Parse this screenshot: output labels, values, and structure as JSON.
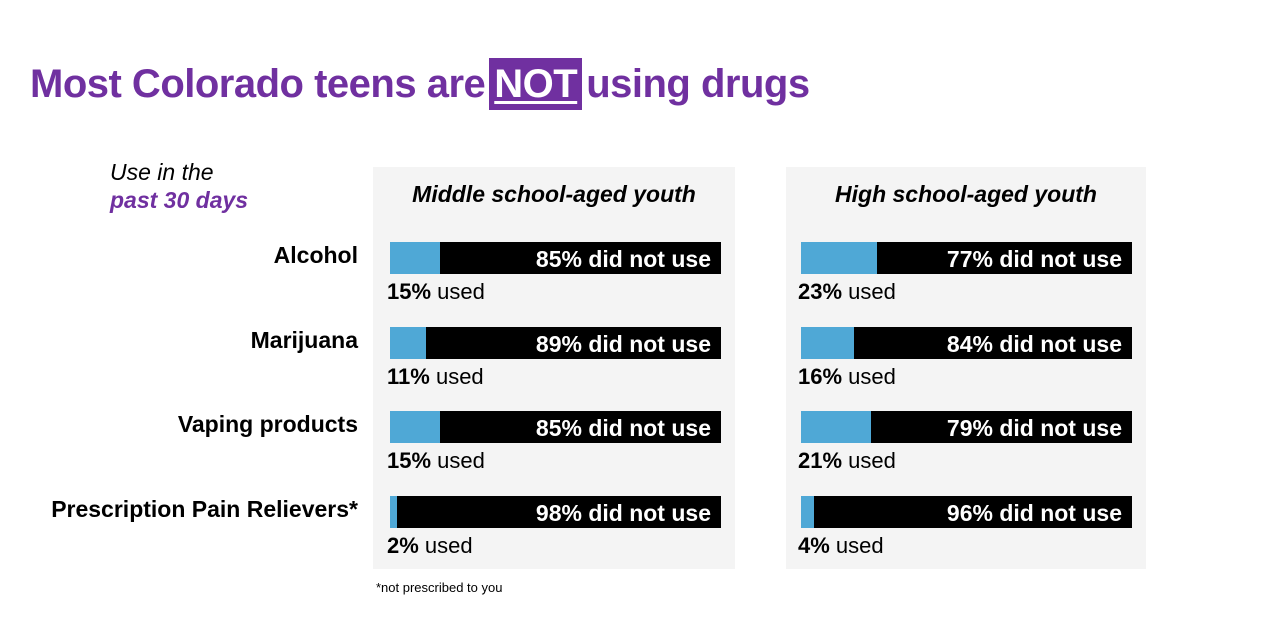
{
  "title": {
    "before": "Most Colorado teens are",
    "highlight": "NOT",
    "after": "using drugs"
  },
  "subhead": {
    "line1": "Use in the",
    "line2": "past 30 days"
  },
  "footnote": "*not prescribed to you",
  "colors": {
    "accent": "#7030a0",
    "used": "#4fa8d6",
    "not_used": "#000000",
    "panel_bg": "#f4f4f4"
  },
  "used_suffix": "used",
  "chart_data": {
    "type": "bar",
    "orientation": "horizontal-stacked",
    "categories": [
      "Alcohol",
      "Marijuana",
      "Vaping products",
      "Prescription Pain Relievers*"
    ],
    "groups": [
      {
        "name": "Middle school-aged youth",
        "used": [
          15,
          11,
          15,
          2
        ],
        "not_used": [
          85,
          89,
          85,
          98
        ],
        "used_labels": [
          "15%",
          "11%",
          "15%",
          "2%"
        ],
        "not_used_labels": [
          "85% did not use",
          "89% did not use",
          "85% did not use",
          "98% did not use"
        ]
      },
      {
        "name": "High school-aged youth",
        "used": [
          23,
          16,
          21,
          4
        ],
        "not_used": [
          77,
          84,
          79,
          96
        ],
        "used_labels": [
          "23%",
          "16%",
          "21%",
          "4%"
        ],
        "not_used_labels": [
          "77% did not use",
          "84% did not use",
          "79% did not use",
          "96% did not use"
        ]
      }
    ],
    "units": "percent",
    "xlim": [
      0,
      100
    ]
  }
}
